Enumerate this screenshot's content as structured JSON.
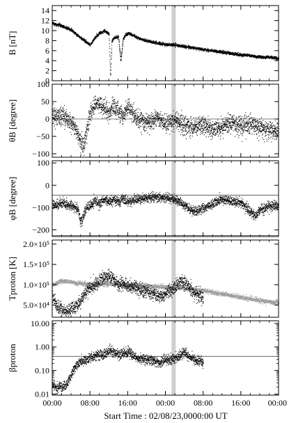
{
  "chart_data": [
    {
      "type": "line",
      "ylabel": "B [nT]",
      "ylim": [
        0,
        15
      ],
      "yticks": [
        0,
        2,
        4,
        6,
        8,
        10,
        12,
        14
      ],
      "yticklabels": [
        "0",
        "2",
        "4",
        "6",
        "8",
        "10",
        "12",
        "14"
      ],
      "series": [
        {
          "style": "dots",
          "color": "#000000",
          "x": [
            0,
            2,
            4,
            6,
            8,
            9,
            10,
            11,
            12,
            12.3,
            12.6,
            13,
            14,
            14.5,
            15,
            15.5,
            16,
            17,
            18,
            19,
            20,
            22,
            24,
            26,
            28,
            30,
            32,
            34,
            36,
            38,
            40,
            42,
            44,
            46,
            48
          ],
          "y": [
            11.5,
            11,
            10.2,
            8.6,
            7.2,
            8.6,
            9.6,
            10,
            9.5,
            1,
            8,
            8.6,
            8.8,
            4,
            8.4,
            9.2,
            9.5,
            9.2,
            8.6,
            8.3,
            8,
            7.6,
            7.3,
            7.2,
            6.9,
            6.6,
            6.3,
            6,
            5.8,
            5.5,
            5.2,
            5.1,
            4.8,
            4.7,
            4.6
          ],
          "noise": 0.25
        }
      ]
    },
    {
      "type": "line",
      "ylabel": "θB [degree]",
      "ylim": [
        -110,
        100
      ],
      "yticks": [
        -100,
        -50,
        0,
        50,
        100
      ],
      "yticklabels": [
        "−100",
        "−50",
        "0",
        "50",
        "100"
      ],
      "hlines": [
        0
      ],
      "series": [
        {
          "style": "dots",
          "color": "#000000",
          "x": [
            0,
            1,
            2,
            3,
            4,
            5,
            6,
            6.5,
            7,
            8,
            9,
            10,
            11,
            12,
            13,
            14,
            15,
            16,
            18,
            20,
            22,
            24,
            26,
            28,
            30,
            32,
            34,
            36,
            38,
            40,
            42,
            44,
            46,
            48
          ],
          "y": [
            15,
            5,
            10,
            0,
            -10,
            -30,
            -65,
            -80,
            -50,
            20,
            45,
            40,
            30,
            20,
            40,
            25,
            10,
            35,
            0,
            -10,
            5,
            -15,
            0,
            -20,
            -25,
            -15,
            -30,
            -20,
            -10,
            -20,
            -15,
            -25,
            -30,
            -35
          ],
          "noise": 22
        }
      ]
    },
    {
      "type": "line",
      "ylabel": "φB [degree]",
      "ylim": [
        -230,
        110
      ],
      "yticks": [
        -200,
        -100,
        0,
        100
      ],
      "yticklabels": [
        "−200",
        "−100",
        "0",
        "100"
      ],
      "hlines": [
        -45,
        -225
      ],
      "series": [
        {
          "style": "dots",
          "color": "#000000",
          "x": [
            0,
            2,
            4,
            5.5,
            6,
            6.5,
            7,
            8,
            9,
            10,
            11,
            12,
            13,
            14,
            15,
            16,
            18,
            20,
            22,
            24,
            26,
            27,
            28,
            30,
            32,
            34,
            36,
            38,
            40,
            42,
            43,
            44,
            46,
            48
          ],
          "y": [
            -85,
            -80,
            -90,
            -110,
            -170,
            -140,
            -105,
            -90,
            -70,
            -80,
            -60,
            -70,
            -65,
            -75,
            -60,
            -70,
            -65,
            -55,
            -50,
            -55,
            -60,
            -75,
            -90,
            -120,
            -100,
            -80,
            -60,
            -70,
            -75,
            -120,
            -140,
            -110,
            -90,
            -95
          ],
          "noise": 18
        }
      ]
    },
    {
      "type": "scatter",
      "ylabel": "Tproton [K]",
      "ylim": [
        20000,
        210000
      ],
      "yticks": [
        50000,
        100000,
        150000,
        200000
      ],
      "yticklabels": [
        "5.0×10⁴",
        "1.0×10⁵",
        "1.5×10⁵",
        "2.0×10⁵"
      ],
      "series": [
        {
          "style": "dots",
          "color": "#9a9a9a",
          "x": [
            0,
            2,
            4,
            6,
            8,
            10,
            12,
            14,
            16,
            18,
            20,
            22,
            24,
            26,
            28,
            30,
            32,
            34,
            36,
            38,
            40,
            42,
            44,
            46,
            48
          ],
          "y": [
            100000,
            110000,
            108000,
            104000,
            100000,
            102000,
            103000,
            101000,
            99000,
            100000,
            98000,
            96000,
            95000,
            93000,
            91000,
            89000,
            86000,
            82000,
            78000,
            74000,
            70000,
            66000,
            62000,
            59000,
            57000
          ],
          "noise": 5000
        },
        {
          "style": "dots",
          "color": "#000000",
          "x": [
            0,
            1,
            2,
            3,
            4,
            5,
            6,
            7,
            8,
            9,
            10,
            11,
            12,
            13,
            14,
            15,
            16,
            17,
            18,
            19,
            20,
            21,
            22,
            23,
            24,
            25,
            26,
            27,
            28,
            29,
            30,
            31,
            32
          ],
          "y": [
            70000,
            50000,
            38000,
            35000,
            42000,
            48000,
            60000,
            85000,
            95000,
            100000,
            110000,
            118000,
            122000,
            112000,
            100000,
            105000,
            98000,
            95000,
            92000,
            88000,
            85000,
            80000,
            75000,
            72000,
            78000,
            85000,
            95000,
            110000,
            105000,
            95000,
            80000,
            75000,
            70000
          ],
          "noise": 14000
        }
      ]
    },
    {
      "type": "line",
      "ylabel": "βproton",
      "ylim": [
        0.009,
        13
      ],
      "yscale": "log",
      "yticks": [
        0.01,
        0.1,
        1,
        10
      ],
      "yticklabels": [
        "0.01",
        "0.10",
        "1.00",
        "10.00"
      ],
      "hlines": [
        0.4
      ],
      "series": [
        {
          "style": "dots",
          "color": "#000000",
          "x": [
            0,
            1,
            2,
            3,
            4,
            5,
            6,
            7,
            8,
            9,
            10,
            11,
            12,
            13,
            14,
            15,
            16,
            17,
            18,
            19,
            20,
            21,
            22,
            23,
            24,
            25,
            26,
            27,
            28,
            29,
            30,
            31,
            32
          ],
          "y": [
            0.025,
            0.02,
            0.02,
            0.025,
            0.06,
            0.15,
            0.25,
            0.3,
            0.35,
            0.45,
            0.5,
            0.45,
            0.8,
            0.6,
            0.5,
            0.55,
            0.7,
            0.45,
            0.35,
            0.32,
            0.3,
            0.28,
            0.26,
            0.25,
            0.28,
            0.3,
            0.35,
            0.4,
            0.6,
            0.4,
            0.3,
            0.25,
            0.24
          ],
          "noise": 0.18,
          "noise_mode": "log"
        }
      ]
    }
  ],
  "xaxis": {
    "range": [
      0,
      48
    ],
    "ticks": [
      0,
      8,
      16,
      24,
      32,
      40,
      48
    ],
    "ticklabels": [
      "00:00",
      "08:00",
      "16:00",
      "00:00",
      "08:00",
      "16:00",
      "00:00"
    ],
    "minor_step": 2,
    "label": "Start Time : 02/08/23,0000:00 UT"
  },
  "shade": {
    "x": [
      25.3,
      26.2
    ],
    "color": "#cfcfcf"
  }
}
